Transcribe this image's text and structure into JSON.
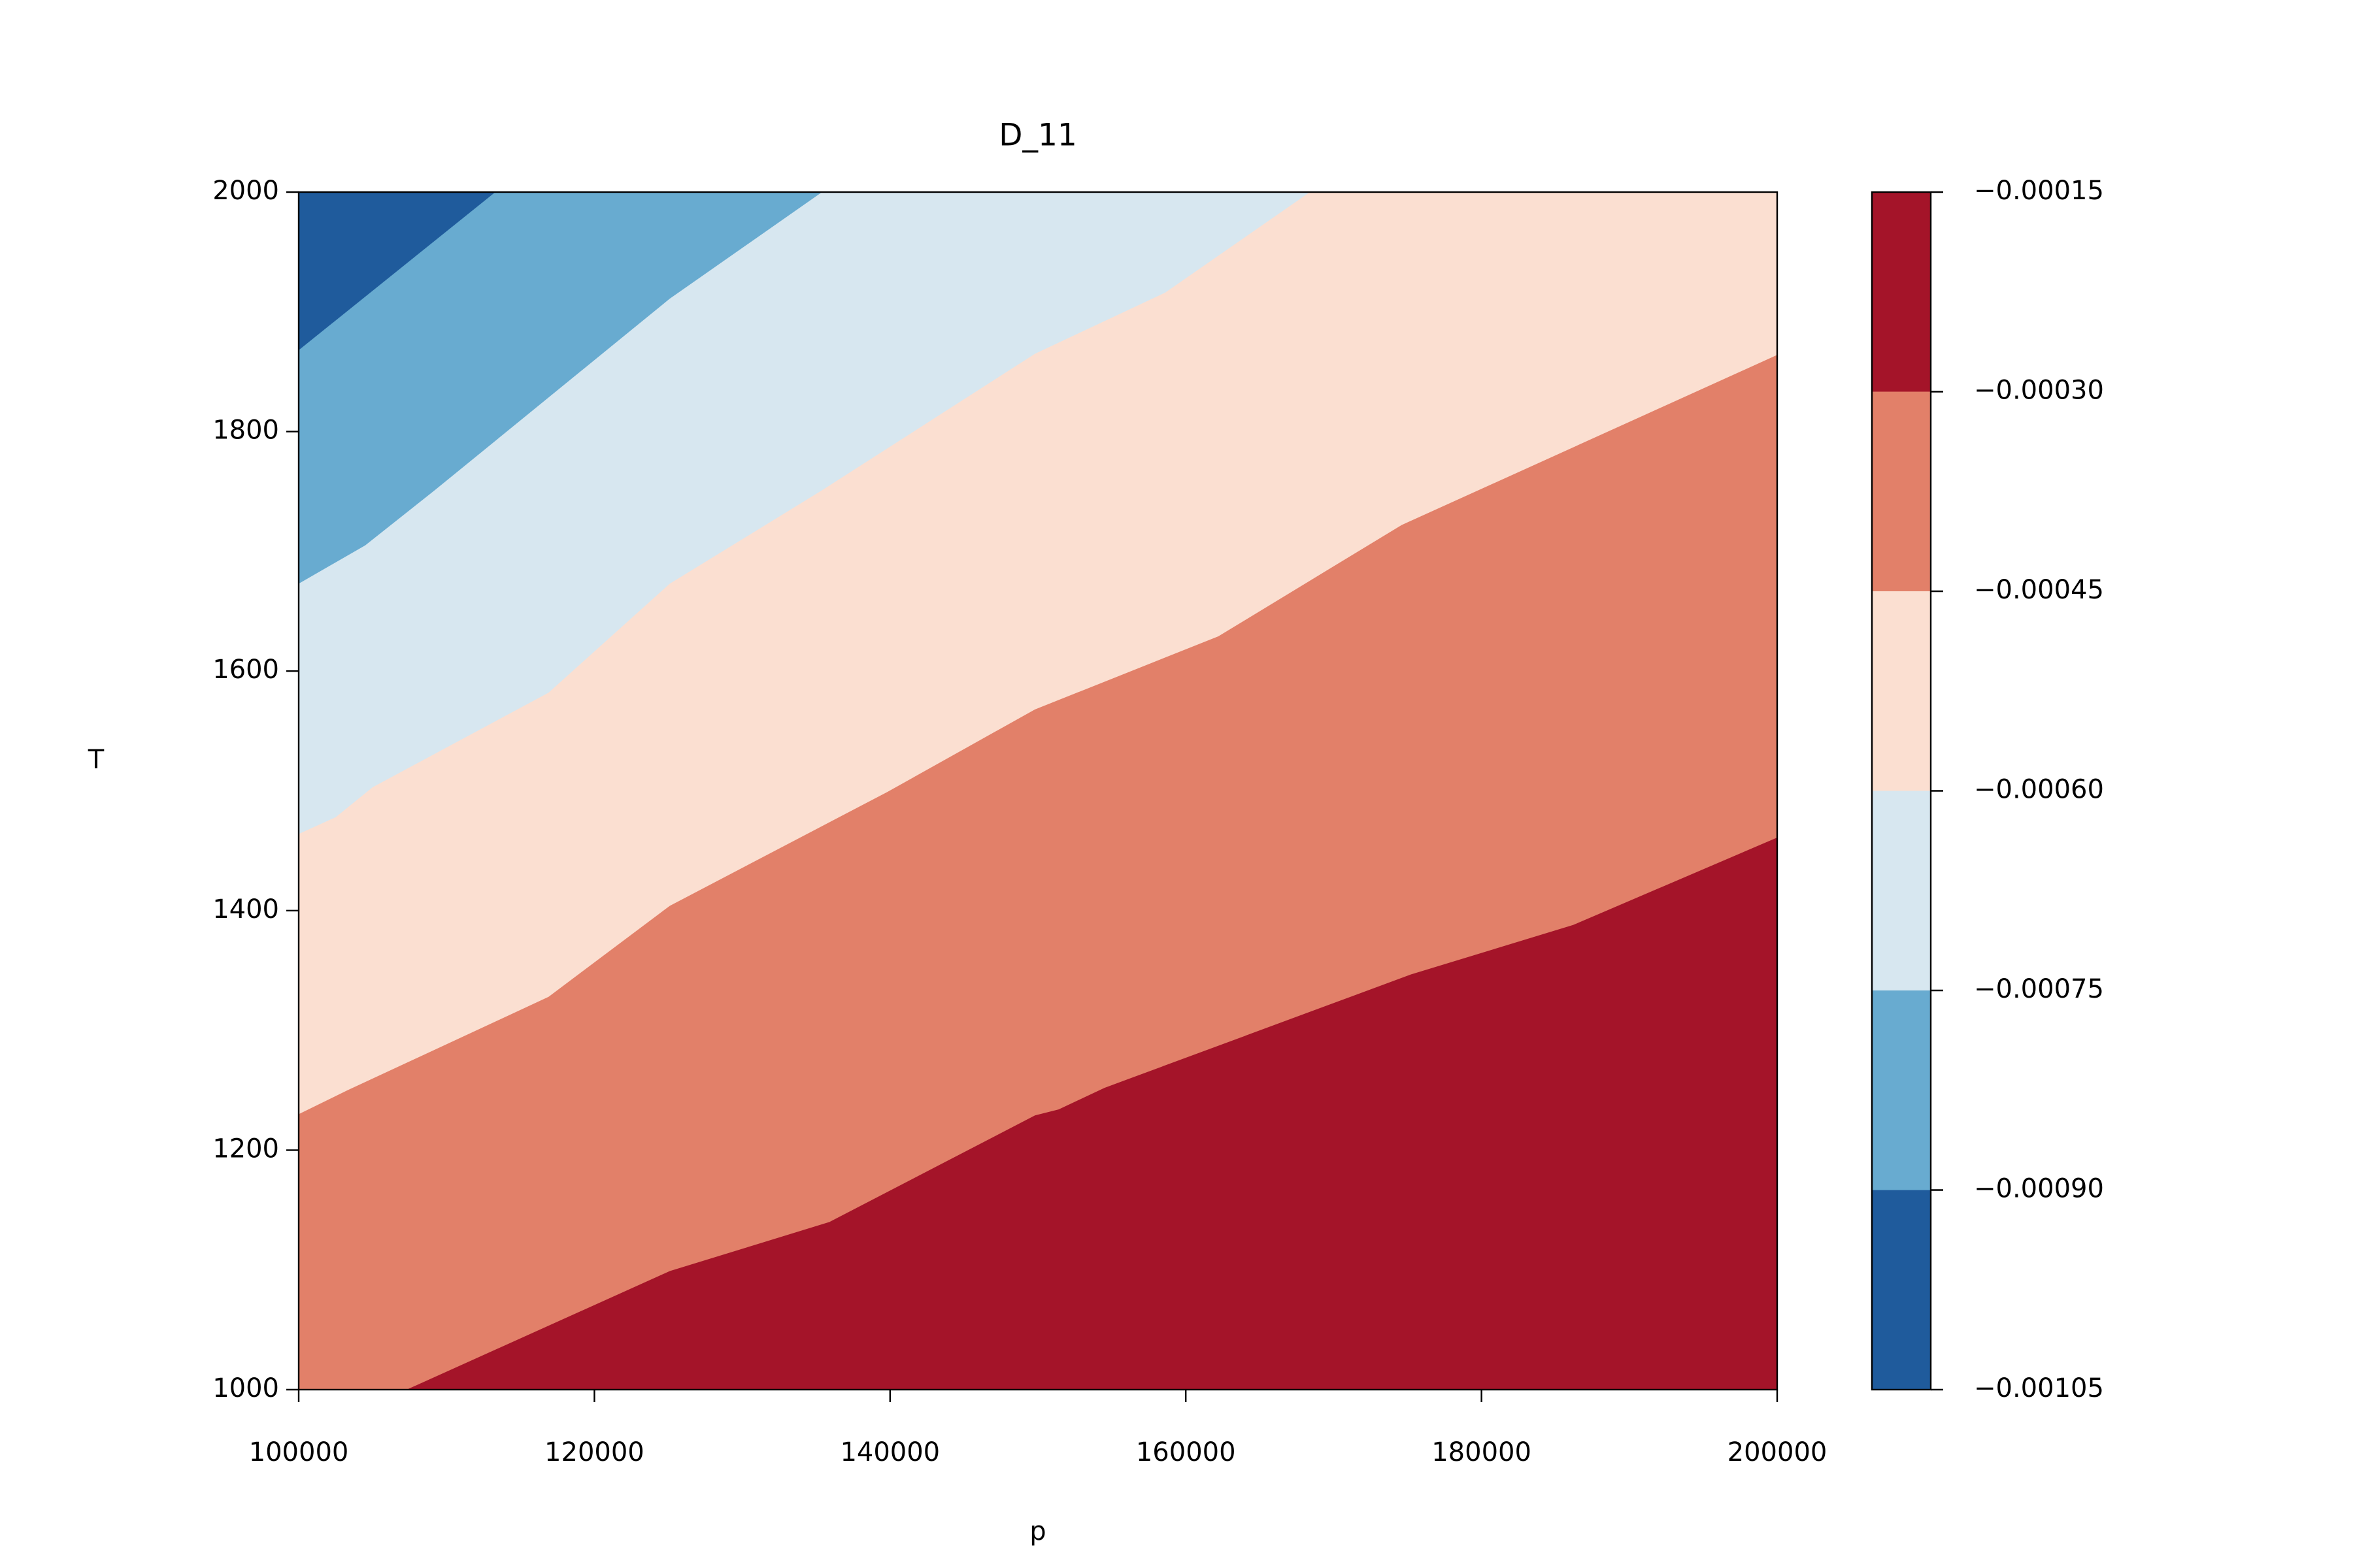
{
  "chart_data": {
    "type": "contourf",
    "title": "D_11",
    "x_label": "p",
    "y_label": "T",
    "xlim": [
      100000,
      200000
    ],
    "ylim": [
      1000,
      2000
    ],
    "xticks": [
      100000,
      120000,
      140000,
      160000,
      180000,
      200000
    ],
    "yticks": [
      1000,
      1200,
      1400,
      1600,
      1800,
      2000
    ],
    "colorbar": {
      "ticks": [
        {
          "value": -0.00105,
          "label": "−0.00105"
        },
        {
          "value": -0.0009,
          "label": "−0.00090"
        },
        {
          "value": -0.00075,
          "label": "−0.00075"
        },
        {
          "value": -0.0006,
          "label": "−0.00060"
        },
        {
          "value": -0.00045,
          "label": "−0.00045"
        },
        {
          "value": -0.0003,
          "label": "−0.00030"
        },
        {
          "value": -0.00015,
          "label": "−0.00015"
        }
      ],
      "colors": [
        "#1f5b9c",
        "#68abd0",
        "#d7e7f0",
        "#fbdfd1",
        "#e28069",
        "#a41429"
      ]
    },
    "contours": [
      {
        "level": -0.0003,
        "x": [
          107300,
          125100,
          135900,
          149800,
          151400,
          154500,
          175300,
          186200,
          200000
        ],
        "y": [
          1000,
          1099,
          1140,
          1229,
          1234,
          1252,
          1347,
          1388,
          1461
        ]
      },
      {
        "level": -0.00045,
        "x": [
          100000,
          103300,
          116900,
          125100,
          139800,
          149800,
          162200,
          174600,
          200000
        ],
        "y": [
          1230,
          1250,
          1328,
          1404,
          1499,
          1568,
          1629,
          1722,
          1864
        ]
      },
      {
        "level": -0.0006,
        "x": [
          100000,
          102500,
          105000,
          116900,
          125100,
          135400,
          149800,
          158600,
          168400
        ],
        "y": [
          1464,
          1478,
          1503,
          1582,
          1673,
          1751,
          1865,
          1916,
          2000
        ]
      },
      {
        "level": -0.00075,
        "x": [
          100000,
          104500,
          109200,
          125100,
          135400
        ],
        "y": [
          1673,
          1705,
          1751,
          1911,
          2000
        ]
      },
      {
        "level": -0.0009,
        "x": [
          100000,
          113300
        ],
        "y": [
          1868,
          2000
        ]
      }
    ]
  }
}
